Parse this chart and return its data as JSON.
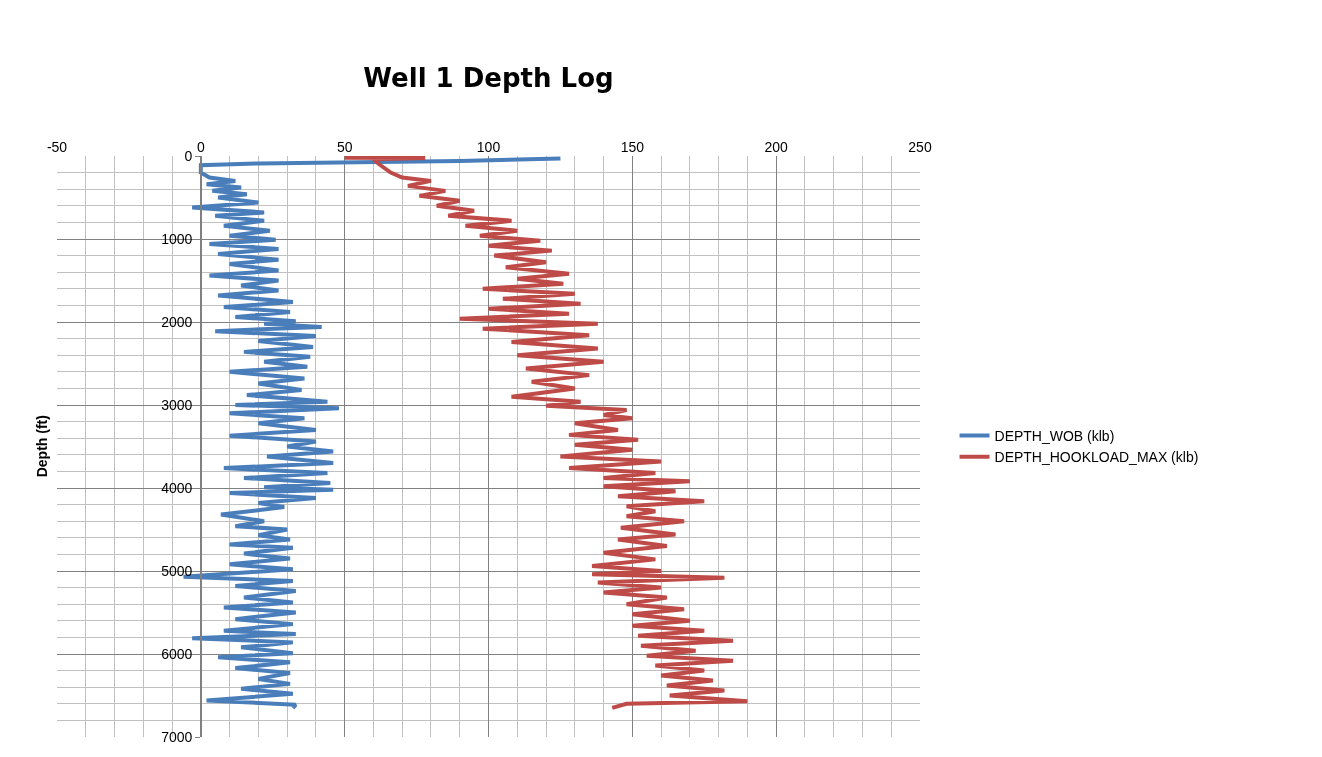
{
  "chart_data": {
    "type": "line",
    "title": "Well 1 Depth Log",
    "ylabel": "Depth (ft)",
    "xlim": [
      -50,
      250
    ],
    "xticks": [
      -50,
      0,
      50,
      100,
      150,
      200,
      250
    ],
    "ylim": [
      7000,
      0
    ],
    "yticks": [
      0,
      1000,
      2000,
      3000,
      4000,
      5000,
      6000,
      7000
    ],
    "grid": true,
    "legend": "right",
    "marker": "none",
    "line_style": "solid",
    "series": [
      {
        "name": "DEPTH_WOB (klb)",
        "color": "#4a7ebb",
        "x": [
          125,
          90,
          20,
          0,
          0,
          3,
          12,
          2,
          14,
          4,
          16,
          6,
          20,
          -3,
          22,
          5,
          22,
          8,
          24,
          10,
          26,
          3,
          27,
          6,
          27,
          10,
          27,
          3,
          27,
          14,
          27,
          6,
          32,
          8,
          31,
          12,
          33,
          22,
          42,
          5,
          40,
          20,
          39,
          15,
          38,
          22,
          37,
          10,
          36,
          20,
          35,
          16,
          44,
          12,
          48,
          10,
          36,
          20,
          40,
          10,
          40,
          30,
          46,
          23,
          46,
          8,
          44,
          15,
          45,
          22,
          46,
          10,
          40,
          20,
          29,
          7,
          22,
          12,
          30,
          20,
          31,
          10,
          32,
          15,
          31,
          10,
          32,
          -6,
          32,
          12,
          33,
          15,
          32,
          8,
          33,
          12,
          32,
          8,
          33,
          -3,
          32,
          14,
          32,
          6,
          31,
          12,
          31,
          20,
          31,
          14,
          32,
          2,
          33,
          32
        ],
        "values": [
          30,
          60,
          90,
          110,
          200,
          260,
          300,
          340,
          380,
          420,
          460,
          500,
          560,
          620,
          680,
          720,
          780,
          840,
          900,
          960,
          1010,
          1060,
          1120,
          1180,
          1250,
          1300,
          1380,
          1440,
          1500,
          1560,
          1620,
          1680,
          1760,
          1820,
          1880,
          1940,
          1990,
          2020,
          2060,
          2110,
          2170,
          2230,
          2300,
          2360,
          2420,
          2480,
          2540,
          2600,
          2680,
          2740,
          2820,
          2880,
          2960,
          3000,
          3040,
          3100,
          3160,
          3220,
          3300,
          3370,
          3440,
          3500,
          3560,
          3620,
          3700,
          3760,
          3820,
          3880,
          3940,
          3990,
          4020,
          4060,
          4120,
          4180,
          4230,
          4320,
          4400,
          4460,
          4500,
          4570,
          4620,
          4680,
          4720,
          4790,
          4850,
          4920,
          4980,
          5070,
          5120,
          5180,
          5240,
          5320,
          5380,
          5440,
          5500,
          5580,
          5640,
          5720,
          5760,
          5810,
          5860,
          5920,
          5990,
          6040,
          6100,
          6170,
          6230,
          6300,
          6360,
          6420,
          6480,
          6560,
          6610,
          6650
        ]
      },
      {
        "name": "DEPTH_HOOKLOAD_MAX (klb)",
        "color": "#be4b48",
        "x": [
          50,
          78,
          60,
          62,
          66,
          70,
          80,
          72,
          85,
          76,
          90,
          82,
          95,
          86,
          108,
          92,
          110,
          97,
          118,
          100,
          122,
          102,
          120,
          106,
          128,
          110,
          126,
          98,
          130,
          105,
          132,
          100,
          128,
          90,
          138,
          98,
          135,
          108,
          138,
          110,
          140,
          113,
          135,
          115,
          130,
          108,
          132,
          120,
          148,
          140,
          150,
          130,
          145,
          128,
          152,
          130,
          150,
          125,
          160,
          128,
          158,
          140,
          170,
          140,
          165,
          145,
          175,
          148,
          158,
          148,
          168,
          146,
          165,
          145,
          162,
          140,
          158,
          136,
          160,
          136,
          182,
          138,
          160,
          140,
          162,
          148,
          168,
          150,
          170,
          150,
          175,
          152,
          185,
          153,
          172,
          155,
          185,
          158,
          175,
          160,
          178,
          162,
          182,
          163,
          190,
          148,
          143
        ],
        "values": [
          20,
          25,
          40,
          100,
          200,
          260,
          300,
          360,
          420,
          480,
          540,
          600,
          660,
          720,
          780,
          840,
          900,
          960,
          1020,
          1080,
          1140,
          1200,
          1280,
          1340,
          1420,
          1480,
          1540,
          1600,
          1660,
          1720,
          1780,
          1840,
          1900,
          1960,
          2020,
          2080,
          2160,
          2240,
          2320,
          2400,
          2480,
          2560,
          2640,
          2720,
          2800,
          2900,
          2960,
          3010,
          3060,
          3120,
          3160,
          3220,
          3300,
          3360,
          3420,
          3480,
          3540,
          3620,
          3680,
          3760,
          3820,
          3880,
          3920,
          3980,
          4040,
          4100,
          4160,
          4220,
          4280,
          4340,
          4400,
          4480,
          4560,
          4620,
          4700,
          4780,
          4860,
          4940,
          5000,
          5040,
          5080,
          5140,
          5200,
          5260,
          5320,
          5400,
          5460,
          5520,
          5600,
          5660,
          5720,
          5780,
          5840,
          5900,
          5960,
          6020,
          6080,
          6140,
          6200,
          6260,
          6320,
          6380,
          6440,
          6500,
          6570,
          6600,
          6650
        ]
      }
    ]
  }
}
